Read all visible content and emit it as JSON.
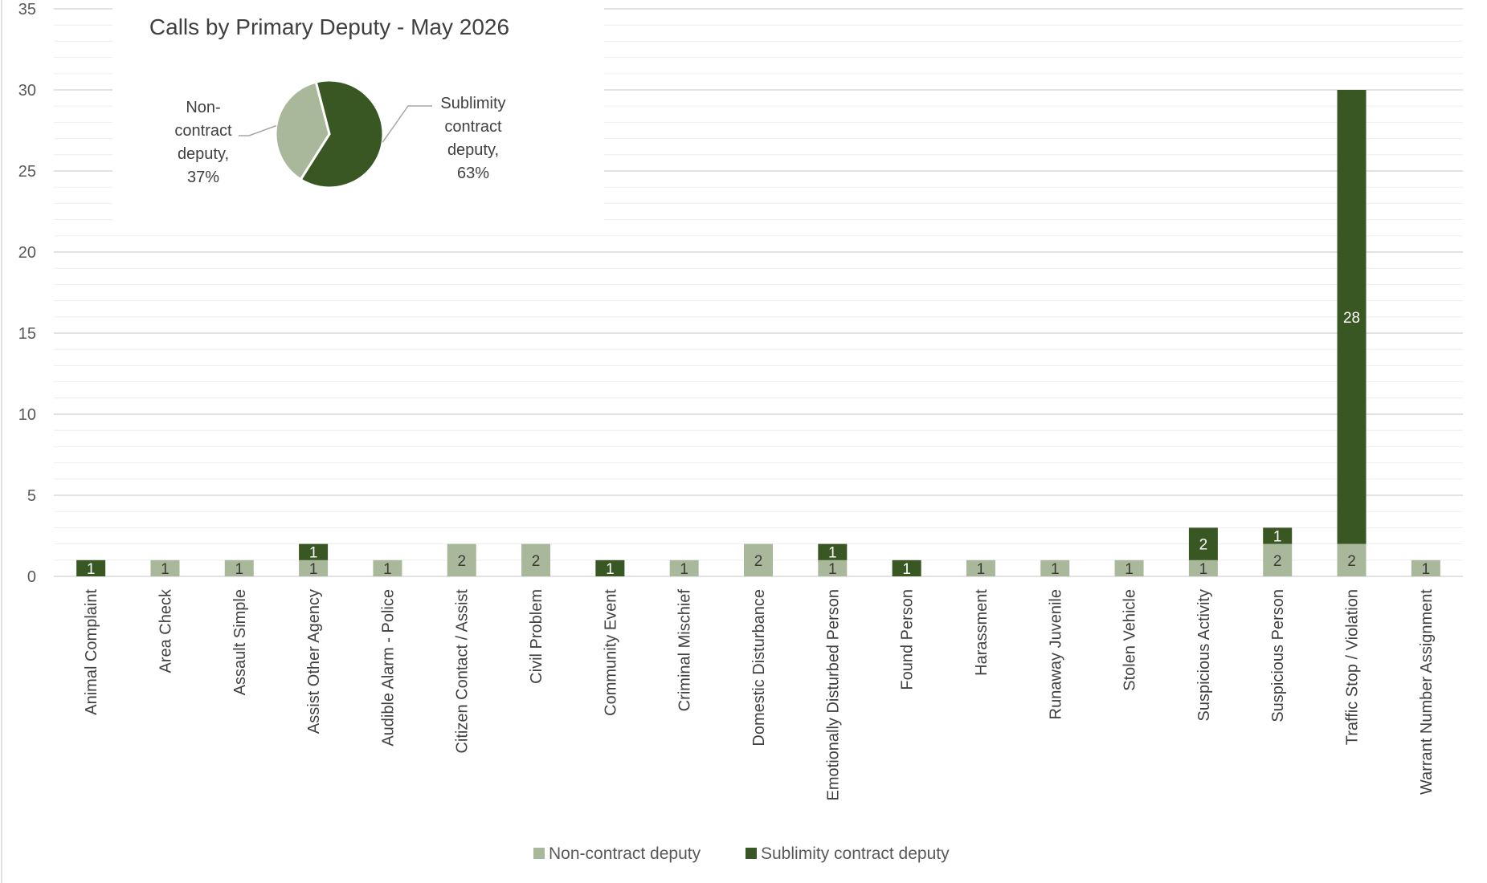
{
  "chart_data": [
    {
      "type": "bar",
      "stacked": true,
      "categories": [
        "Animal Complaint",
        "Area Check",
        "Assault Simple",
        "Assist Other Agency",
        "Audible Alarm - Police",
        "Citizen Contact / Assist",
        "Civil Problem",
        "Community Event",
        "Criminal Mischief",
        "Domestic Disturbance",
        "Emotionally Disturbed Person",
        "Found Person",
        "Harassment",
        "Runaway Juvenile",
        "Stolen Vehicle",
        "Suspicious Activity",
        "Suspicious Person",
        "Traffic Stop / Violation",
        "Warrant Number Assignment"
      ],
      "series": [
        {
          "name": "Non-contract deputy",
          "color": "#a9b89a",
          "values": [
            0,
            1,
            1,
            1,
            1,
            2,
            2,
            0,
            1,
            2,
            1,
            0,
            1,
            1,
            1,
            1,
            2,
            2,
            1
          ]
        },
        {
          "name": "Sublimity contract deputy",
          "color": "#385723",
          "values": [
            1,
            0,
            0,
            1,
            0,
            0,
            0,
            1,
            0,
            0,
            1,
            1,
            0,
            0,
            0,
            2,
            1,
            28,
            0
          ]
        }
      ],
      "ylim": [
        0,
        35
      ],
      "yticks": [
        "0",
        "5",
        "10",
        "15",
        "20",
        "25",
        "30",
        "35"
      ],
      "grid": true,
      "minor_grid": true,
      "legend_position": "bottom",
      "xlabel": "",
      "ylabel": ""
    },
    {
      "type": "pie",
      "title": "Calls by Primary Deputy - May 2026",
      "slices": [
        {
          "name": "Sublimity contract deputy",
          "value": 63,
          "color": "#385723",
          "label_lines": [
            "Sublimity",
            "contract",
            "deputy,",
            "63%"
          ]
        },
        {
          "name": "Non-contract deputy",
          "value": 37,
          "color": "#a9b89a",
          "label_lines": [
            "Non-",
            "contract",
            "deputy,",
            "37%"
          ]
        }
      ]
    }
  ]
}
